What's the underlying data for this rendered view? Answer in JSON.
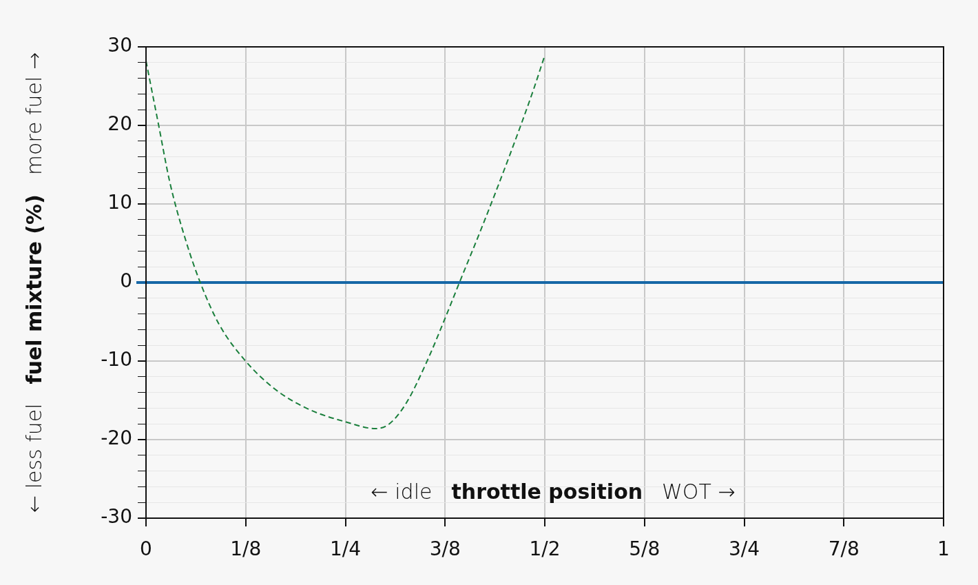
{
  "chart_data": {
    "type": "line",
    "xlabel": "throttle position",
    "ylabel": "fuel mixture (%)",
    "annotations": [
      "← less fuel",
      "more fuel →",
      "← idle",
      "WOT →"
    ],
    "series": [
      {
        "color": "#1a7f3c",
        "line_style": "dashed",
        "x": [
          0,
          0.0155,
          0.03,
          0.05,
          0.068,
          0.0915,
          0.124,
          0.162,
          0.2055,
          0.249,
          0.288,
          0.305,
          0.326,
          0.352,
          0.374,
          0.393,
          0.421,
          0.456,
          0.486,
          0.499
        ],
        "values": [
          28.2,
          20.2,
          12.7,
          5.3,
          0,
          -5.3,
          -9.9,
          -13.6,
          -16.2,
          -17.7,
          -18.6,
          -18.0,
          -15.4,
          -10.1,
          -4.8,
          0,
          7.0,
          16.2,
          24.6,
          28.6
        ]
      }
    ],
    "ref_lines": [
      {
        "axis": "y",
        "value": 0,
        "color": "#1667a6"
      }
    ],
    "xlim": [
      0,
      1
    ],
    "xticks": [
      0,
      {
        "value": 0.125,
        "label": "1/8"
      },
      {
        "value": 0.25,
        "label": "1/4"
      },
      {
        "value": 0.375,
        "label": "3/8"
      },
      {
        "value": 0.5,
        "label": "1/2"
      },
      {
        "value": 0.625,
        "label": "5/8"
      },
      {
        "value": 0.75,
        "label": "3/4"
      },
      {
        "value": 0.875,
        "label": "7/8"
      },
      1
    ],
    "ylim": [
      -30,
      30
    ],
    "yticks": [
      -30,
      {
        "value": -28,
        "label": null
      },
      {
        "value": -26,
        "label": null
      },
      {
        "value": -24,
        "label": null
      },
      {
        "value": -22,
        "label": null
      },
      -20,
      {
        "value": -18,
        "label": null
      },
      {
        "value": -16,
        "label": null
      },
      {
        "value": -14,
        "label": null
      },
      {
        "value": -12,
        "label": null
      },
      -10,
      {
        "value": -8,
        "label": null
      },
      {
        "value": -6,
        "label": null
      },
      {
        "value": -4,
        "label": null
      },
      {
        "value": -2,
        "label": null
      },
      0,
      {
        "value": 2,
        "label": null
      },
      {
        "value": 4,
        "label": null
      },
      {
        "value": 6,
        "label": null
      },
      {
        "value": 8,
        "label": null
      },
      10,
      {
        "value": 12,
        "label": null
      },
      {
        "value": 14,
        "label": null
      },
      {
        "value": 16,
        "label": null
      },
      {
        "value": 18,
        "label": null
      },
      20,
      {
        "value": 22,
        "label": null
      },
      {
        "value": 24,
        "label": null
      },
      {
        "value": 26,
        "label": null
      },
      {
        "value": 28,
        "label": null
      },
      30
    ],
    "grid": true,
    "legend": false,
    "marker": "none"
  }
}
